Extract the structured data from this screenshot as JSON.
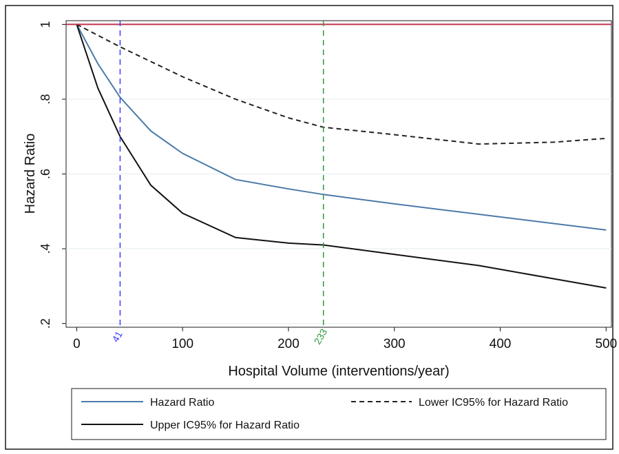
{
  "chart_data": {
    "type": "line",
    "xlabel": "Hospital Volume (interventions/year)",
    "ylabel": "Hazard Ratio",
    "xlim": [
      -10,
      505
    ],
    "ylim": [
      0.19,
      1.01
    ],
    "x_ticks": [
      0,
      100,
      200,
      300,
      400,
      500
    ],
    "y_ticks": [
      0.2,
      0.4,
      0.6,
      0.8,
      1.0
    ],
    "y_tick_labels": [
      ".2",
      ".4",
      ".6",
      ".8",
      "1"
    ],
    "grid": "horizontal",
    "reference_line": {
      "y": 1,
      "color": "#c0334d"
    },
    "vertical_markers": [
      {
        "x": 41,
        "label": "41",
        "color": "#3a3aff"
      },
      {
        "x": 233,
        "label": "233",
        "color": "#2a9a3a"
      }
    ],
    "series": [
      {
        "name": "Hazard Ratio",
        "color": "#4a7aa8",
        "style": "solid",
        "x": [
          0,
          20,
          41,
          70,
          100,
          150,
          200,
          233,
          300,
          400,
          500
        ],
        "y": [
          1.0,
          0.895,
          0.805,
          0.715,
          0.655,
          0.585,
          0.56,
          0.545,
          0.52,
          0.485,
          0.45
        ]
      },
      {
        "name": "Lower IC95% for Hazard Ratio",
        "color": "#222222",
        "style": "dashed",
        "x": [
          0,
          41,
          100,
          150,
          200,
          233,
          300,
          380,
          450,
          500
        ],
        "y": [
          1.0,
          0.94,
          0.86,
          0.8,
          0.75,
          0.725,
          0.705,
          0.68,
          0.685,
          0.695
        ]
      },
      {
        "name": "Upper IC95% for Hazard Ratio",
        "color": "#111111",
        "style": "solid",
        "x": [
          0,
          20,
          41,
          70,
          100,
          150,
          200,
          233,
          300,
          380,
          450,
          500
        ],
        "y": [
          1.0,
          0.83,
          0.7,
          0.57,
          0.495,
          0.43,
          0.415,
          0.41,
          0.385,
          0.355,
          0.32,
          0.295
        ]
      }
    ],
    "legend": {
      "position": "bottom",
      "entries": [
        "Hazard Ratio",
        "Lower IC95% for Hazard Ratio",
        "Upper IC95% for Hazard Ratio"
      ]
    }
  }
}
